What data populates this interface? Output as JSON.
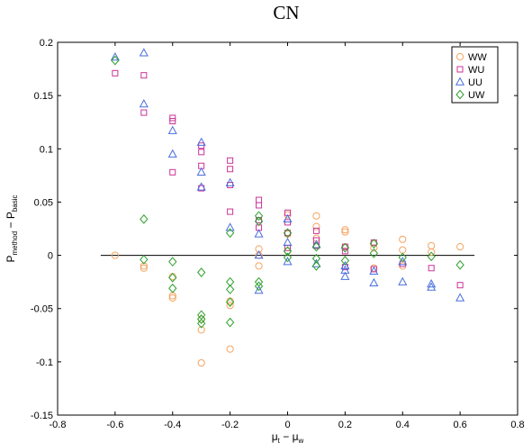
{
  "chart_data": {
    "type": "scatter",
    "title": "CN",
    "xlabel": "μ_t − μ_w",
    "ylabel": "P_method − P_basic",
    "xlim": [
      -0.8,
      0.8
    ],
    "ylim": [
      -0.15,
      0.2
    ],
    "x_ticks": [
      "-0.8",
      "-0.6",
      "-0.4",
      "-0.2",
      "0",
      "0.2",
      "0.4",
      "0.6",
      "0.8"
    ],
    "y_ticks": [
      "0.2",
      "0.15",
      "0.1",
      "0.05",
      "0",
      "-0.05",
      "-0.1",
      "-0.15"
    ],
    "reference_line": {
      "y": 0,
      "x_from": -0.65,
      "x_to": 0.65
    },
    "legend_position": "top-right",
    "grid": false,
    "series": [
      {
        "name": "WW",
        "marker": "circle",
        "color": "#f4a460",
        "points": [
          [
            -0.6,
            0.0
          ],
          [
            -0.5,
            -0.01
          ],
          [
            -0.5,
            -0.012
          ],
          [
            -0.4,
            -0.038
          ],
          [
            -0.4,
            -0.04
          ],
          [
            -0.4,
            -0.02
          ],
          [
            -0.3,
            -0.07
          ],
          [
            -0.3,
            -0.101
          ],
          [
            -0.3,
            -0.06
          ],
          [
            -0.2,
            -0.088
          ],
          [
            -0.2,
            -0.047
          ],
          [
            -0.2,
            -0.043
          ],
          [
            -0.1,
            0.006
          ],
          [
            -0.1,
            0.0
          ],
          [
            -0.1,
            -0.01
          ],
          [
            0.0,
            0.038
          ],
          [
            0.0,
            0.02
          ],
          [
            0.0,
            0.004
          ],
          [
            0.1,
            0.037
          ],
          [
            0.1,
            0.027
          ],
          [
            0.1,
            0.016
          ],
          [
            0.2,
            0.024
          ],
          [
            0.2,
            0.022
          ],
          [
            0.2,
            0.008
          ],
          [
            0.3,
            0.011
          ],
          [
            0.3,
            0.007
          ],
          [
            0.3,
            -0.012
          ],
          [
            0.4,
            0.015
          ],
          [
            0.4,
            0.005
          ],
          [
            0.4,
            -0.01
          ],
          [
            0.5,
            0.009
          ],
          [
            0.5,
            0.003
          ],
          [
            0.6,
            0.008
          ]
        ]
      },
      {
        "name": "WU",
        "marker": "square",
        "color": "#cc3399",
        "points": [
          [
            -0.6,
            0.171
          ],
          [
            -0.5,
            0.169
          ],
          [
            -0.5,
            0.134
          ],
          [
            -0.4,
            0.129
          ],
          [
            -0.4,
            0.126
          ],
          [
            -0.4,
            0.078
          ],
          [
            -0.3,
            0.103
          ],
          [
            -0.3,
            0.097
          ],
          [
            -0.3,
            0.084
          ],
          [
            -0.3,
            0.063
          ],
          [
            -0.2,
            0.089
          ],
          [
            -0.2,
            0.081
          ],
          [
            -0.2,
            0.066
          ],
          [
            -0.2,
            0.041
          ],
          [
            -0.1,
            0.052
          ],
          [
            -0.1,
            0.047
          ],
          [
            -0.1,
            0.033
          ],
          [
            -0.1,
            0.026
          ],
          [
            0.0,
            0.04
          ],
          [
            0.0,
            0.031
          ],
          [
            0.0,
            0.021
          ],
          [
            0.0,
            0.007
          ],
          [
            0.1,
            0.023
          ],
          [
            0.1,
            0.014
          ],
          [
            0.1,
            0.009
          ],
          [
            0.2,
            0.008
          ],
          [
            0.2,
            0.004
          ],
          [
            0.2,
            -0.011
          ],
          [
            0.3,
            0.012
          ],
          [
            0.3,
            -0.013
          ],
          [
            0.4,
            -0.008
          ],
          [
            0.5,
            -0.012
          ],
          [
            0.6,
            -0.028
          ]
        ]
      },
      {
        "name": "UU",
        "marker": "triangle",
        "color": "#4a6ee0",
        "points": [
          [
            -0.6,
            0.186
          ],
          [
            -0.5,
            0.19
          ],
          [
            -0.5,
            0.142
          ],
          [
            -0.4,
            0.117
          ],
          [
            -0.4,
            0.095
          ],
          [
            -0.3,
            0.106
          ],
          [
            -0.3,
            0.078
          ],
          [
            -0.3,
            0.064
          ],
          [
            -0.2,
            0.068
          ],
          [
            -0.2,
            0.026
          ],
          [
            -0.1,
            0.02
          ],
          [
            -0.1,
            0.0
          ],
          [
            -0.1,
            -0.033
          ],
          [
            0.0,
            0.034
          ],
          [
            0.0,
            0.012
          ],
          [
            0.0,
            -0.006
          ],
          [
            0.1,
            0.01
          ],
          [
            0.1,
            -0.008
          ],
          [
            0.2,
            -0.01
          ],
          [
            0.2,
            -0.014
          ],
          [
            0.2,
            -0.02
          ],
          [
            0.3,
            -0.015
          ],
          [
            0.3,
            -0.026
          ],
          [
            0.4,
            -0.006
          ],
          [
            0.4,
            -0.025
          ],
          [
            0.5,
            -0.027
          ],
          [
            0.5,
            -0.03
          ],
          [
            0.6,
            -0.04
          ]
        ]
      },
      {
        "name": "UW",
        "marker": "diamond",
        "color": "#2ca02c",
        "points": [
          [
            -0.6,
            0.183
          ],
          [
            -0.5,
            0.034
          ],
          [
            -0.5,
            -0.004
          ],
          [
            -0.4,
            -0.006
          ],
          [
            -0.4,
            -0.021
          ],
          [
            -0.4,
            -0.031
          ],
          [
            -0.3,
            -0.016
          ],
          [
            -0.3,
            -0.056
          ],
          [
            -0.3,
            -0.06
          ],
          [
            -0.3,
            -0.064
          ],
          [
            -0.2,
            0.021
          ],
          [
            -0.2,
            -0.025
          ],
          [
            -0.2,
            -0.032
          ],
          [
            -0.2,
            -0.044
          ],
          [
            -0.2,
            -0.063
          ],
          [
            -0.1,
            0.037
          ],
          [
            -0.1,
            0.032
          ],
          [
            -0.1,
            -0.025
          ],
          [
            -0.1,
            -0.029
          ],
          [
            0.0,
            0.021
          ],
          [
            0.0,
            0.004
          ],
          [
            0.0,
            -0.002
          ],
          [
            0.1,
            0.008
          ],
          [
            0.1,
            -0.003
          ],
          [
            0.1,
            -0.01
          ],
          [
            0.2,
            0.007
          ],
          [
            0.2,
            -0.005
          ],
          [
            0.3,
            0.011
          ],
          [
            0.3,
            0.002
          ],
          [
            0.4,
            -0.002
          ],
          [
            0.5,
            -0.001
          ],
          [
            0.6,
            -0.009
          ]
        ]
      }
    ]
  }
}
